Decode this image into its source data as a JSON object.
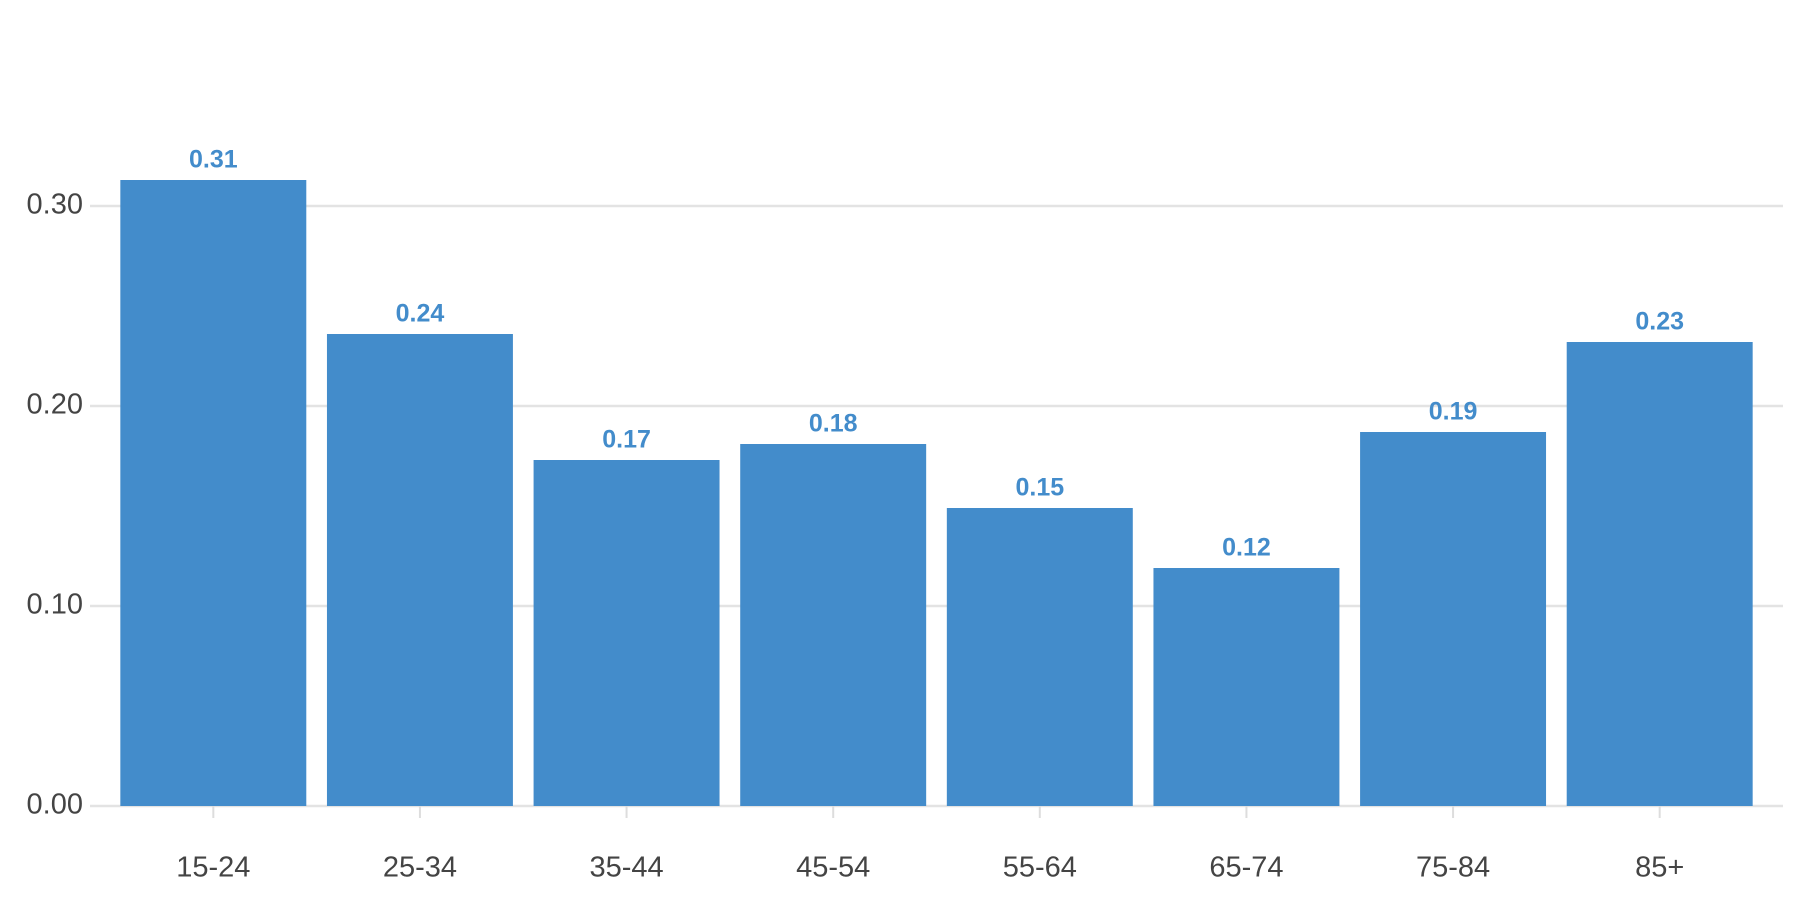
{
  "chart_data": {
    "type": "bar",
    "categories": [
      "15-24",
      "25-34",
      "35-44",
      "45-54",
      "55-64",
      "65-74",
      "75-84",
      "85+"
    ],
    "values": [
      0.313,
      0.236,
      0.173,
      0.181,
      0.149,
      0.119,
      0.187,
      0.232
    ],
    "value_labels": [
      "0.31",
      "0.24",
      "0.17",
      "0.18",
      "0.15",
      "0.12",
      "0.19",
      "0.23"
    ],
    "color": "#438ccb",
    "ylim": [
      0,
      0.34
    ],
    "yticks": [
      {
        "value": 0,
        "label": "0.00"
      },
      {
        "value": 0.1,
        "label": "0.10"
      },
      {
        "value": 0.2,
        "label": "0.20"
      },
      {
        "value": 0.3,
        "label": "0.30"
      }
    ],
    "grid": true
  }
}
